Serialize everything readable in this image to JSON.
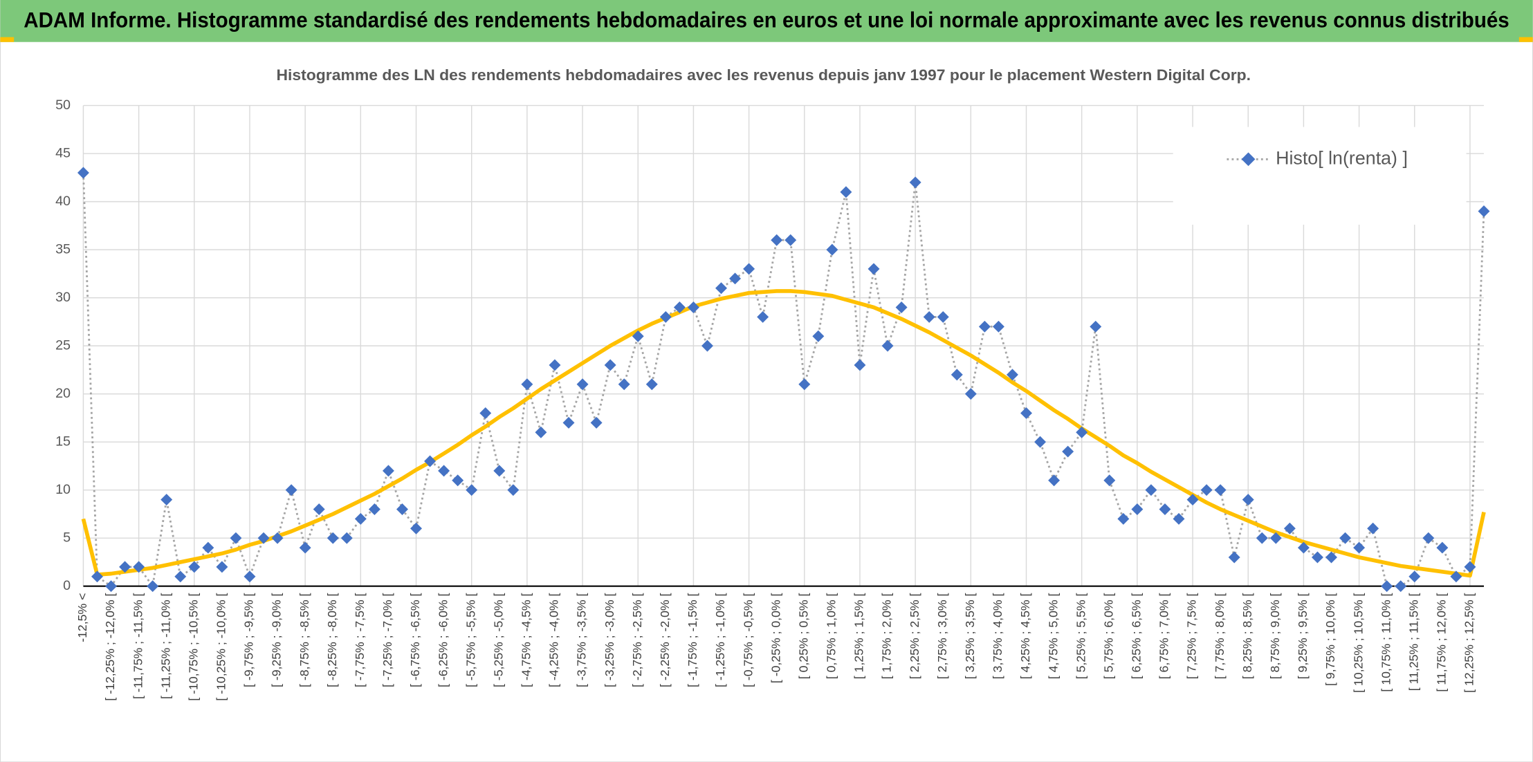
{
  "header": {
    "title": "ADAM Informe. Histogramme standardisé des rendements hebdomadaires en euros et une loi normale approximante avec les revenus connus distribués"
  },
  "chart_data": {
    "type": "line",
    "title": "Histogramme des LN des rendements hebdomadaires avec les revenus depuis janv 1997 pour le placement Western Digital Corp.",
    "categories": [
      "-12,5% <",
      null,
      "[ -12,25% ; -12,0% [",
      null,
      "[ -11,75% ; -11,5% [",
      null,
      "[ -11,25% ; -11,0% [",
      null,
      "[ -10,75% ; -10,5% [",
      null,
      "[ -10,25% ; -10,0% [",
      null,
      "[ -9,75% ; -9,5% [",
      null,
      "[ -9,25% ; -9,0% [",
      null,
      "[ -8,75% ; -8,5% [",
      null,
      "[ -8,25% ; -8,0% [",
      null,
      "[ -7,75% ; -7,5% [",
      null,
      "[ -7,25% ; -7,0% [",
      null,
      "[ -6,75% ; -6,5% [",
      null,
      "[ -6,25% ; -6,0% [",
      null,
      "[ -5,75% ; -5,5% [",
      null,
      "[ -5,25% ; -5,0% [",
      null,
      "[ -4,75% ; -4,5% [",
      null,
      "[ -4,25% ; -4,0% [",
      null,
      "[ -3,75% ; -3,5% [",
      null,
      "[ -3,25% ; -3,0% [",
      null,
      "[ -2,75% ; -2,5% [",
      null,
      "[ -2,25% ; -2,0% [",
      null,
      "[ -1,75% ; -1,5% [",
      null,
      "[ -1,25% ; -1,0% [",
      null,
      "[ -0,75% ; -0,5% [",
      null,
      "[ -0,25% ; 0,0% [",
      null,
      "[ 0,25% ; 0,5% [",
      null,
      "[ 0,75% ; 1,0% [",
      null,
      "[ 1,25% ; 1,5% [",
      null,
      "[ 1,75% ; 2,0% [",
      null,
      "[ 2,25% ; 2,5% [",
      null,
      "[ 2,75% ; 3,0% [",
      null,
      "[ 3,25% ; 3,5% [",
      null,
      "[ 3,75% ; 4,0% [",
      null,
      "[ 4,25% ; 4,5% [",
      null,
      "[ 4,75% ; 5,0% [",
      null,
      "[ 5,25% ; 5,5% [",
      null,
      "[ 5,75% ; 6,0% [",
      null,
      "[ 6,25% ; 6,5% [",
      null,
      "[ 6,75% ; 7,0% [",
      null,
      "[ 7,25% ; 7,5% [",
      null,
      "[ 7,75% ; 8,0% [",
      null,
      "[ 8,25% ; 8,5% [",
      null,
      "[ 8,75% ; 9,0% [",
      null,
      "[ 9,25% ; 9,5% [",
      null,
      "[ 9,75% ; 10,0% [",
      null,
      "[ 10,25% ; 10,5% [",
      null,
      "[ 10,75% ; 11,0% [",
      null,
      "[ 11,25% ; 11,5% [",
      null,
      "[ 11,75% ; 12,0% [",
      null,
      "[ 12,25% ; 12,5% [",
      null
    ],
    "series": [
      {
        "name": "Histo[ ln(renta) ]",
        "color": "#4472c4",
        "line_color": "#a5a5a5",
        "line_style": "dotted",
        "values": [
          43,
          1,
          0,
          2,
          2,
          0,
          9,
          1,
          2,
          4,
          2,
          5,
          1,
          5,
          5,
          10,
          4,
          8,
          5,
          5,
          7,
          8,
          12,
          8,
          6,
          13,
          12,
          11,
          10,
          18,
          12,
          10,
          21,
          16,
          23,
          17,
          21,
          17,
          23,
          21,
          26,
          21,
          28,
          29,
          29,
          25,
          31,
          32,
          33,
          28,
          36,
          36,
          21,
          26,
          35,
          41,
          23,
          33,
          25,
          29,
          42,
          28,
          28,
          22,
          20,
          27,
          27,
          22,
          18,
          15,
          11,
          14,
          16,
          27,
          11,
          7,
          8,
          10,
          8,
          7,
          9,
          10,
          10,
          3,
          9,
          5,
          5,
          6,
          4,
          3,
          3,
          5,
          4,
          6,
          0,
          0,
          1,
          5,
          4,
          1,
          2,
          39
        ]
      },
      {
        "color": "#ffc000",
        "line_style": "solid",
        "values": [
          7,
          1.2,
          1.3,
          1.5,
          1.7,
          1.9,
          2.2,
          2.5,
          2.8,
          3.1,
          3.4,
          3.8,
          4.3,
          4.7,
          5.2,
          5.7,
          6.3,
          6.9,
          7.5,
          8.2,
          8.9,
          9.6,
          10.4,
          11.2,
          12.1,
          12.9,
          13.8,
          14.7,
          15.7,
          16.6,
          17.6,
          18.5,
          19.5,
          20.5,
          21.4,
          22.3,
          23.2,
          24.1,
          25.0,
          25.8,
          26.6,
          27.3,
          27.9,
          28.5,
          29.1,
          29.5,
          29.9,
          30.2,
          30.5,
          30.6,
          30.7,
          30.7,
          30.6,
          30.4,
          30.2,
          29.8,
          29.4,
          29.0,
          28.4,
          27.8,
          27.1,
          26.4,
          25.6,
          24.8,
          24.0,
          23.1,
          22.2,
          21.2,
          20.3,
          19.3,
          18.3,
          17.4,
          16.4,
          15.5,
          14.6,
          13.6,
          12.8,
          11.9,
          11.1,
          10.3,
          9.5,
          8.7,
          8.0,
          7.4,
          6.8,
          6.2,
          5.6,
          5.1,
          4.6,
          4.2,
          3.8,
          3.4,
          3.0,
          2.7,
          2.4,
          2.1,
          1.9,
          1.7,
          1.5,
          1.3,
          1.1,
          7.7
        ]
      }
    ],
    "ylim": [
      0,
      50
    ],
    "yticks": [
      0,
      5,
      10,
      15,
      20,
      25,
      30,
      35,
      40,
      45,
      50
    ],
    "grid": true,
    "legend": "top-right"
  }
}
